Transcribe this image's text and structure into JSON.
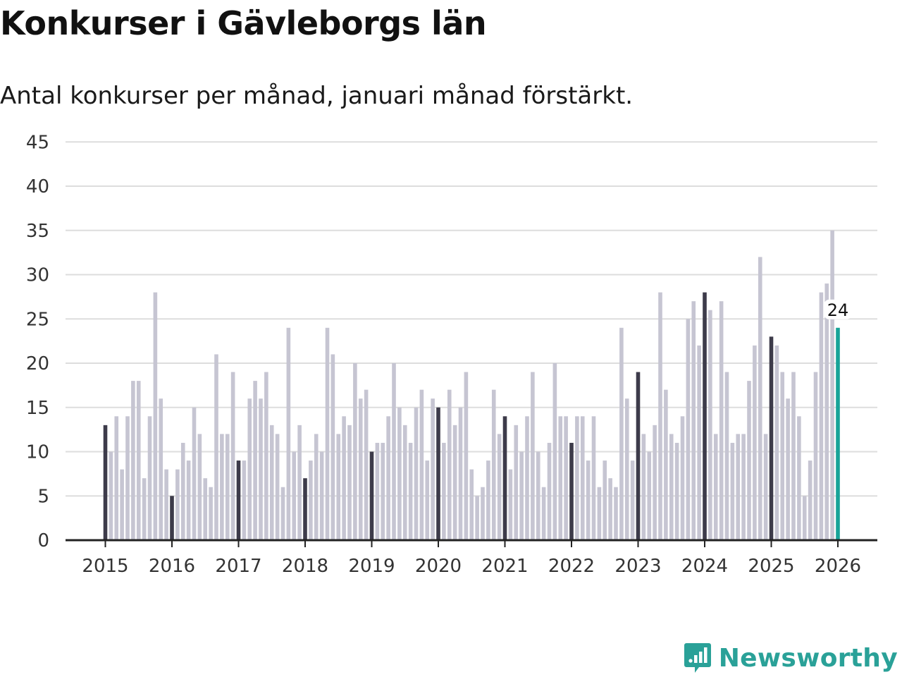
{
  "title": "Konkurser i Gävleborgs län",
  "subtitle": "Antal konkurser per månad, januari månad förstärkt.",
  "brand": {
    "name": "Newsworthy",
    "icon": "newsworthy-logo-icon"
  },
  "colors": {
    "jan": "#3d3b4a",
    "month": "#c6c5d2",
    "highlight": "#17a398",
    "grid": "#dddddd",
    "axis": "#222222",
    "brand": "#2aa198"
  },
  "chart_data": {
    "type": "bar",
    "title": "Konkurser i Gävleborgs län",
    "subtitle": "Antal konkurser per månad, januari månad förstärkt.",
    "xlabel": "",
    "ylabel": "",
    "ylim": [
      0,
      45
    ],
    "yticks": [
      "0",
      "5",
      "10",
      "15",
      "20",
      "25",
      "30",
      "35",
      "40",
      "45"
    ],
    "xticks": [
      "2015",
      "2016",
      "2017",
      "2018",
      "2019",
      "2020",
      "2021",
      "2022",
      "2023",
      "2024",
      "2025",
      "2026"
    ],
    "start": "2015-01",
    "values": [
      13,
      10,
      14,
      8,
      14,
      18,
      18,
      7,
      14,
      28,
      16,
      8,
      5,
      8,
      11,
      9,
      15,
      12,
      7,
      6,
      21,
      12,
      12,
      19,
      9,
      9,
      16,
      18,
      16,
      19,
      13,
      12,
      6,
      24,
      10,
      13,
      7,
      9,
      12,
      10,
      24,
      21,
      12,
      14,
      13,
      20,
      16,
      17,
      10,
      11,
      11,
      14,
      20,
      15,
      13,
      11,
      15,
      17,
      9,
      16,
      15,
      11,
      17,
      13,
      15,
      19,
      8,
      5,
      6,
      9,
      17,
      12,
      14,
      8,
      13,
      10,
      14,
      19,
      10,
      6,
      11,
      20,
      14,
      14,
      11,
      14,
      14,
      9,
      14,
      6,
      9,
      7,
      6,
      24,
      16,
      9,
      19,
      12,
      10,
      13,
      28,
      17,
      12,
      11,
      14,
      25,
      27,
      22,
      28,
      26,
      12,
      27,
      19,
      11,
      12,
      12,
      18,
      22,
      32,
      12,
      23,
      22,
      19,
      16,
      19,
      14,
      5,
      9,
      19,
      28,
      29,
      35,
      24
    ],
    "annotation": {
      "label": "24",
      "month": "2026-01"
    },
    "grid": true,
    "legend": "none"
  }
}
